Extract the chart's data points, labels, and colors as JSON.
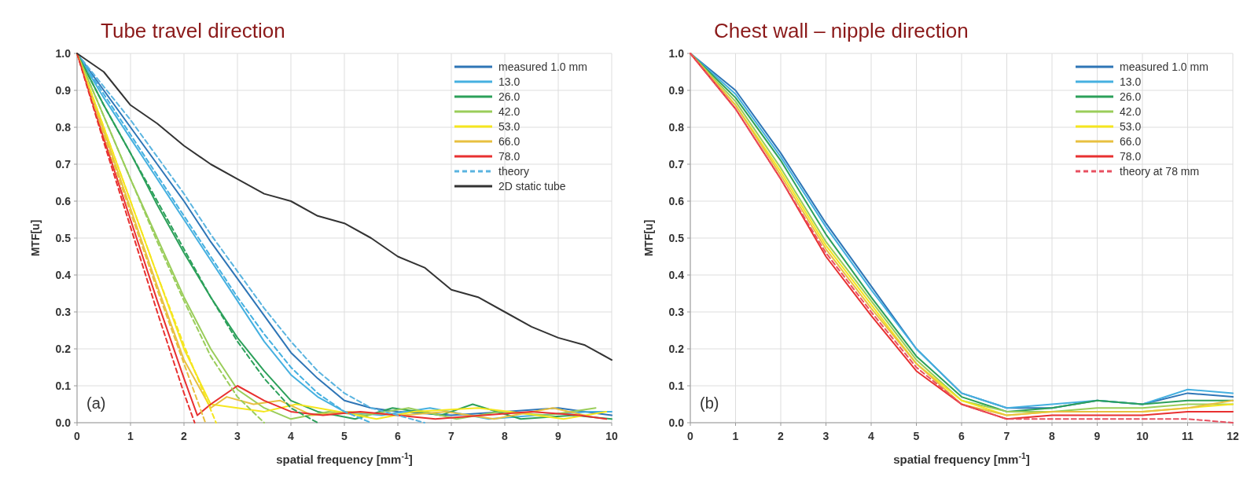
{
  "chart_data": [
    {
      "type": "line",
      "title": "Tube travel direction",
      "xlabel": "spatial frequency [mm$^{-1}$]",
      "ylabel": "MTF[u]",
      "annotations": [
        "(a)"
      ],
      "xlim": [
        0,
        10
      ],
      "ylim": [
        0,
        1
      ],
      "xticks": [
        0,
        1,
        2,
        3,
        4,
        5,
        6,
        7,
        8,
        9,
        10
      ],
      "yticks": [
        {
          "value": 0,
          "label": "0.0"
        },
        {
          "value": 0.1,
          "label": "0.1"
        },
        {
          "value": 0.2,
          "label": "0.2"
        },
        {
          "value": 0.3,
          "label": "0.3"
        },
        {
          "value": 0.4,
          "label": "0.4"
        },
        {
          "value": 0.5,
          "label": "0.5"
        },
        {
          "value": 0.6,
          "label": "0.6"
        },
        {
          "value": 0.7,
          "label": "0.7"
        },
        {
          "value": 0.8,
          "label": "0.8"
        },
        {
          "value": 0.9,
          "label": "0.9"
        },
        {
          "value": 1,
          "label": "1.0"
        }
      ],
      "grid": true,
      "legend": "top right",
      "line_style": "solid",
      "x": [
        0,
        0.5,
        1,
        1.5,
        2,
        2.5,
        3,
        3.5,
        4,
        4.5,
        5,
        5.5,
        6,
        7,
        8,
        9,
        10
      ],
      "series": [
        {
          "name": "measured 1.0 mm",
          "color": "#2e75b6",
          "values": [
            1,
            0.9,
            0.8,
            0.7,
            0.6,
            0.49,
            0.39,
            0.29,
            0.19,
            0.12,
            0.06,
            0.04,
            0.03,
            0.02,
            0.03,
            0.04,
            0.02
          ]
        },
        {
          "name": "13.0",
          "color": "#45b0e0",
          "x": [
            0,
            0.5,
            1,
            1.5,
            2,
            2.5,
            3,
            3.5,
            4,
            4.5,
            5,
            5.7,
            6.6,
            7.7,
            8.6,
            9.6,
            10
          ],
          "values": [
            1,
            0.88,
            0.77,
            0.66,
            0.55,
            0.44,
            0.33,
            0.22,
            0.13,
            0.07,
            0.03,
            0.02,
            0.04,
            0.01,
            0.02,
            0.03,
            0.03
          ]
        },
        {
          "name": "26.0",
          "color": "#2ca05a",
          "x": [
            0,
            0.5,
            1,
            1.5,
            2,
            2.5,
            3,
            3.5,
            4,
            4.5,
            5.2,
            5.9,
            6.8,
            7.4,
            8.3,
            9.3,
            10
          ],
          "values": [
            1,
            0.86,
            0.73,
            0.59,
            0.46,
            0.34,
            0.23,
            0.14,
            0.06,
            0.03,
            0.01,
            0.04,
            0.02,
            0.05,
            0.01,
            0.02,
            0.01
          ]
        },
        {
          "name": "42.0",
          "color": "#9acd5a",
          "x": [
            0,
            0.5,
            1,
            1.5,
            2,
            2.5,
            3,
            3.5,
            4,
            4.7,
            5.4,
            6.2,
            7.1,
            7.9,
            8.8,
            9.7
          ],
          "values": [
            1,
            0.83,
            0.66,
            0.5,
            0.34,
            0.2,
            0.09,
            0.04,
            0.01,
            0.03,
            0.02,
            0.04,
            0.01,
            0.03,
            0.02,
            0.04
          ]
        },
        {
          "name": "53.0",
          "color": "#f5e61e",
          "x": [
            0,
            0.5,
            1,
            1.5,
            2,
            2.5,
            3,
            3.5,
            4.1,
            4.9,
            5.6,
            6.3,
            7.5,
            8.1,
            9.1,
            9.9
          ],
          "values": [
            1,
            0.8,
            0.6,
            0.4,
            0.2,
            0.05,
            0.04,
            0.03,
            0.05,
            0.03,
            0.01,
            0.03,
            0.04,
            0.03,
            0.01,
            0.03
          ]
        },
        {
          "name": "66.0",
          "color": "#e8c040",
          "x": [
            0,
            0.5,
            1,
            1.5,
            2,
            2.5,
            2.8,
            3.3,
            3.8,
            4.4,
            5.1,
            6.1,
            6.9,
            7.8,
            8.9,
            9.5
          ],
          "values": [
            1,
            0.79,
            0.58,
            0.37,
            0.17,
            0.04,
            0.07,
            0.05,
            0.06,
            0.02,
            0.03,
            0.02,
            0.03,
            0.01,
            0.04,
            0.02
          ]
        },
        {
          "name": "78.0",
          "color": "#e83030",
          "x": [
            0,
            0.5,
            1,
            1.5,
            2,
            2.25,
            2.5,
            3,
            3.5,
            4,
            4.6,
            5.3,
            6,
            6.7,
            7.6,
            8.5,
            9.4,
            9.9
          ],
          "values": [
            1,
            0.77,
            0.55,
            0.33,
            0.12,
            0.02,
            0.05,
            0.1,
            0.06,
            0.03,
            0.02,
            0.03,
            0.02,
            0.01,
            0.02,
            0.03,
            0.02,
            0.01
          ]
        },
        {
          "name": "theory",
          "color": "#5ab4e0",
          "line_style": "dashed",
          "x": [
            0,
            0.5,
            1,
            1.5,
            2,
            2.5,
            3,
            3.5,
            4,
            4.5,
            5,
            5.5,
            6,
            6.5
          ],
          "values": [
            1,
            0.91,
            0.82,
            0.72,
            0.62,
            0.51,
            0.41,
            0.31,
            0.22,
            0.14,
            0.08,
            0.04,
            0.02,
            0
          ]
        },
        {
          "color": "#45b0e0",
          "line_style": "dashed",
          "x": [
            0,
            0.5,
            1,
            1.5,
            2,
            2.5,
            3,
            3.5,
            4,
            4.5,
            5,
            5.5
          ],
          "values": [
            1,
            0.89,
            0.78,
            0.67,
            0.56,
            0.45,
            0.34,
            0.24,
            0.15,
            0.08,
            0.03,
            0
          ]
        },
        {
          "color": "#2ca05a",
          "line_style": "dashed",
          "x": [
            0,
            0.5,
            1,
            1.5,
            2,
            2.5,
            3,
            3.5,
            4,
            4.5
          ],
          "values": [
            1,
            0.86,
            0.73,
            0.6,
            0.47,
            0.34,
            0.22,
            0.12,
            0.04,
            0
          ]
        },
        {
          "color": "#9acd5a",
          "line_style": "dashed",
          "x": [
            0,
            0.5,
            1,
            1.5,
            2,
            2.5,
            3,
            3.5
          ],
          "values": [
            1,
            0.83,
            0.66,
            0.49,
            0.33,
            0.18,
            0.07,
            0
          ]
        },
        {
          "color": "#f5e61e",
          "line_style": "dashed",
          "x": [
            0,
            0.5,
            1,
            1.5,
            2,
            2.6
          ],
          "values": [
            1,
            0.8,
            0.6,
            0.4,
            0.21,
            0
          ]
        },
        {
          "color": "#e8c040",
          "line_style": "dashed",
          "x": [
            0,
            0.5,
            1,
            1.5,
            2,
            2.4
          ],
          "values": [
            1,
            0.78,
            0.57,
            0.36,
            0.16,
            0
          ]
        },
        {
          "color": "#e83030",
          "line_style": "dashed",
          "x": [
            0,
            0.5,
            1,
            1.5,
            2,
            2.2
          ],
          "values": [
            1,
            0.76,
            0.53,
            0.3,
            0.08,
            0
          ]
        },
        {
          "name": "2D  static tube",
          "color": "#333333",
          "x": [
            0,
            0.5,
            1,
            1.5,
            2,
            2.5,
            3,
            3.5,
            4,
            4.5,
            5,
            5.5,
            6,
            6.5,
            7,
            7.5,
            8,
            8.5,
            9,
            9.5,
            10
          ],
          "values": [
            1,
            0.95,
            0.86,
            0.81,
            0.75,
            0.7,
            0.66,
            0.62,
            0.6,
            0.56,
            0.54,
            0.5,
            0.45,
            0.42,
            0.36,
            0.34,
            0.3,
            0.26,
            0.23,
            0.21,
            0.17
          ]
        }
      ]
    },
    {
      "type": "line",
      "title": "Chest wall – nipple direction",
      "xlabel": "spatial frequency [mm$^{-1}$]",
      "ylabel": "MTF[u]",
      "annotations": [
        "(b)"
      ],
      "xlim": [
        0,
        12
      ],
      "ylim": [
        0,
        1
      ],
      "xticks": [
        0,
        1,
        2,
        3,
        4,
        5,
        6,
        7,
        8,
        9,
        10,
        11,
        12
      ],
      "yticks": [
        {
          "value": 0,
          "label": "0.0"
        },
        {
          "value": 0.1,
          "label": "0.1"
        },
        {
          "value": 0.2,
          "label": "0.2"
        },
        {
          "value": 0.3,
          "label": "0.3"
        },
        {
          "value": 0.4,
          "label": "0.4"
        },
        {
          "value": 0.5,
          "label": "0.5"
        },
        {
          "value": 0.6,
          "label": "0.6"
        },
        {
          "value": 0.7,
          "label": "0.7"
        },
        {
          "value": 0.8,
          "label": "0.8"
        },
        {
          "value": 0.9,
          "label": "0.9"
        },
        {
          "value": 1,
          "label": "1.0"
        }
      ],
      "grid": true,
      "legend": "top right",
      "line_style": "solid",
      "x": [
        0,
        1,
        2,
        3,
        4,
        5,
        6,
        7,
        8,
        9,
        10,
        11,
        12
      ],
      "series": [
        {
          "name": "measured 1.0 mm",
          "color": "#2e75b6",
          "values": [
            1,
            0.9,
            0.73,
            0.54,
            0.37,
            0.2,
            0.08,
            0.04,
            0.04,
            0.06,
            0.05,
            0.08,
            0.07
          ]
        },
        {
          "name": "13.0",
          "color": "#45b0e0",
          "values": [
            1,
            0.89,
            0.72,
            0.53,
            0.36,
            0.2,
            0.08,
            0.04,
            0.05,
            0.06,
            0.05,
            0.09,
            0.08
          ]
        },
        {
          "name": "26.0",
          "color": "#2ca05a",
          "values": [
            1,
            0.88,
            0.71,
            0.51,
            0.34,
            0.18,
            0.07,
            0.03,
            0.04,
            0.06,
            0.05,
            0.06,
            0.06
          ]
        },
        {
          "name": "42.0",
          "color": "#9acd5a",
          "values": [
            1,
            0.87,
            0.69,
            0.49,
            0.33,
            0.17,
            0.06,
            0.03,
            0.03,
            0.04,
            0.04,
            0.05,
            0.05
          ]
        },
        {
          "name": "53.0",
          "color": "#f5e61e",
          "values": [
            1,
            0.86,
            0.68,
            0.48,
            0.32,
            0.16,
            0.06,
            0.02,
            0.03,
            0.03,
            0.03,
            0.04,
            0.05
          ]
        },
        {
          "name": "66.0",
          "color": "#e8c040",
          "values": [
            1,
            0.86,
            0.67,
            0.47,
            0.31,
            0.16,
            0.05,
            0.02,
            0.03,
            0.03,
            0.03,
            0.04,
            0.06
          ]
        },
        {
          "name": "78.0",
          "color": "#e83030",
          "values": [
            1,
            0.85,
            0.66,
            0.45,
            0.29,
            0.14,
            0.05,
            0.01,
            0.02,
            0.02,
            0.02,
            0.03,
            0.03
          ]
        },
        {
          "name": "theory at 78 mm",
          "color": "#e85060",
          "line_style": "dashed",
          "values": [
            1,
            0.85,
            0.66,
            0.46,
            0.3,
            0.15,
            0.05,
            0.01,
            0.01,
            0.01,
            0.01,
            0.01,
            0
          ]
        }
      ]
    }
  ]
}
